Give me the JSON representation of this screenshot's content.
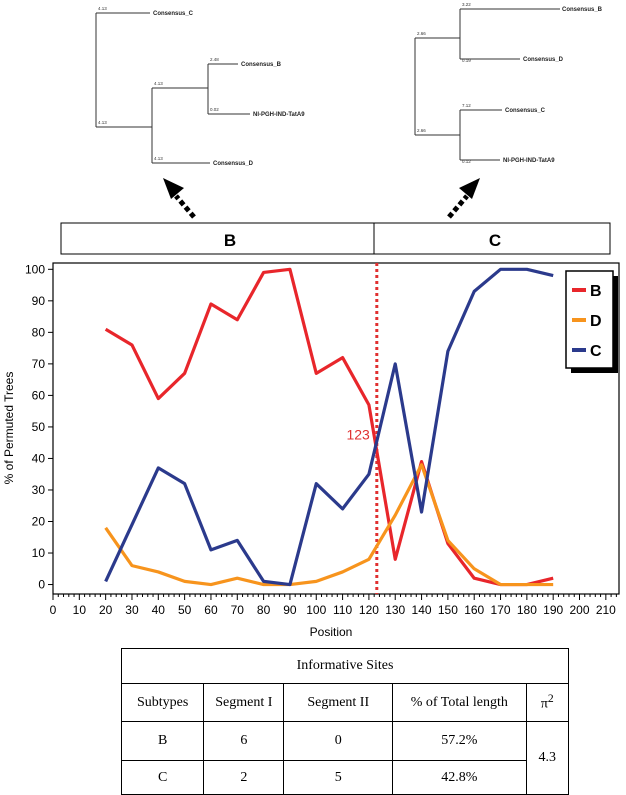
{
  "trees": {
    "left": {
      "leaves": [
        "Consensus_C",
        "Consensus_B",
        "NI-PGH-IND-TatA9",
        "Consensus_D"
      ],
      "branch_values": [
        "4.13",
        "2.48",
        "4.13",
        "0.02",
        "4.13",
        "4.13"
      ]
    },
    "right": {
      "leaves": [
        "Consensus_B",
        "Consensus_D",
        "Consensus_C",
        "NI-PGH-IND-TatA9"
      ],
      "branch_values": [
        "3.22",
        "2.66",
        "0.19",
        "7.12",
        "2.66",
        "0.12"
      ]
    }
  },
  "segments": [
    "B",
    "C"
  ],
  "chart_data": {
    "type": "line",
    "xlabel": "Position",
    "ylabel": "% of Permuted Trees",
    "xlim": [
      0,
      215
    ],
    "ylim": [
      -3,
      102
    ],
    "xticks": [
      0,
      10,
      20,
      30,
      40,
      50,
      60,
      70,
      80,
      90,
      100,
      110,
      120,
      130,
      140,
      150,
      160,
      170,
      180,
      190,
      200,
      210
    ],
    "yticks": [
      0,
      10,
      20,
      30,
      40,
      50,
      60,
      70,
      80,
      90,
      100
    ],
    "breakpoint": {
      "x": 123,
      "label": "123",
      "color": "#e03030"
    },
    "legend_position": "top-right",
    "series": [
      {
        "name": "B",
        "color": "#e8262b",
        "x": [
          20,
          30,
          40,
          50,
          60,
          70,
          80,
          90,
          100,
          110,
          120,
          130,
          140,
          150,
          160,
          170,
          180,
          190
        ],
        "values": [
          81,
          76,
          59,
          67,
          89,
          84,
          99,
          100,
          67,
          72,
          57,
          8,
          39,
          13,
          2,
          0,
          0,
          2
        ]
      },
      {
        "name": "D",
        "color": "#f7941d",
        "x": [
          20,
          30,
          40,
          50,
          60,
          70,
          80,
          90,
          100,
          110,
          120,
          130,
          140,
          150,
          160,
          170,
          180,
          190
        ],
        "values": [
          18,
          6,
          4,
          1,
          0,
          2,
          0,
          0,
          1,
          4,
          8,
          22,
          38,
          14,
          5,
          0,
          0,
          0
        ]
      },
      {
        "name": "C",
        "color": "#2b3a8c",
        "x": [
          20,
          30,
          40,
          50,
          60,
          70,
          80,
          90,
          100,
          110,
          120,
          130,
          140,
          150,
          160,
          170,
          180,
          190
        ],
        "values": [
          1,
          19,
          37,
          32,
          11,
          14,
          1,
          0,
          32,
          24,
          35,
          70,
          23,
          74,
          93,
          100,
          100,
          98
        ]
      }
    ]
  },
  "table": {
    "title": "Informative Sites",
    "headers": [
      "Subtypes",
      "Segment I",
      "Segment II",
      "% of Total length",
      "π"
    ],
    "pi_sup": "2",
    "rows": [
      [
        "B",
        "6",
        "0",
        "57.2%"
      ],
      [
        "C",
        "2",
        "5",
        "42.8%"
      ]
    ],
    "pi_value": "4.3"
  }
}
